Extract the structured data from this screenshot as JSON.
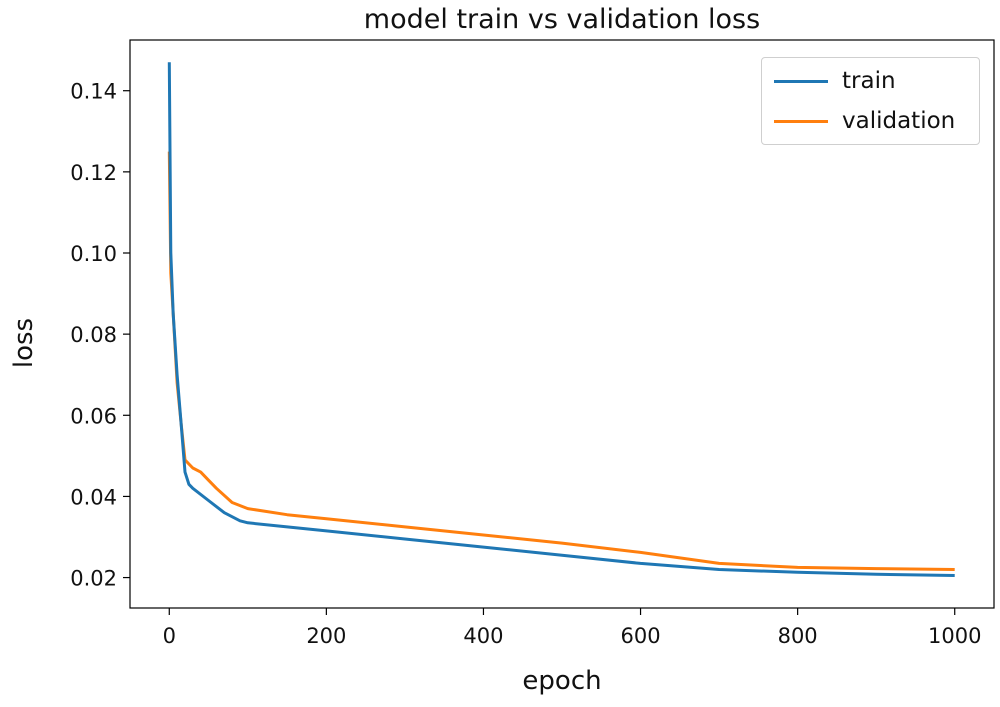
{
  "chart_data": {
    "type": "line",
    "title": "model train vs validation loss",
    "xlabel": "epoch",
    "ylabel": "loss",
    "xlim": [
      -50,
      1050
    ],
    "ylim": [
      0.0125,
      0.1525
    ],
    "xticks": [
      0,
      200,
      400,
      600,
      800,
      1000
    ],
    "xtick_labels": [
      "0",
      "200",
      "400",
      "600",
      "800",
      "1000"
    ],
    "yticks": [
      0.02,
      0.04,
      0.06,
      0.08,
      0.1,
      0.12,
      0.14
    ],
    "ytick_labels": [
      "0.02",
      "0.04",
      "0.06",
      "0.08",
      "0.10",
      "0.12",
      "0.14"
    ],
    "grid": false,
    "legend_position": "top-right",
    "series": [
      {
        "name": "train",
        "color": "#1f77b4",
        "x": [
          0,
          2,
          5,
          10,
          15,
          20,
          25,
          30,
          50,
          70,
          90,
          100,
          150,
          200,
          300,
          400,
          500,
          600,
          700,
          800,
          900,
          1000
        ],
        "y": [
          0.147,
          0.1,
          0.085,
          0.07,
          0.058,
          0.046,
          0.043,
          0.042,
          0.039,
          0.036,
          0.034,
          0.0335,
          0.0325,
          0.0315,
          0.0295,
          0.0275,
          0.0255,
          0.0235,
          0.022,
          0.0213,
          0.0208,
          0.0205
        ]
      },
      {
        "name": "validation",
        "color": "#ff7f0e",
        "x": [
          0,
          2,
          5,
          10,
          15,
          20,
          25,
          30,
          40,
          50,
          60,
          80,
          100,
          150,
          200,
          300,
          400,
          500,
          600,
          700,
          800,
          900,
          1000
        ],
        "y": [
          0.125,
          0.095,
          0.085,
          0.068,
          0.058,
          0.049,
          0.048,
          0.047,
          0.046,
          0.044,
          0.042,
          0.0385,
          0.037,
          0.0355,
          0.0345,
          0.0325,
          0.0305,
          0.0285,
          0.0262,
          0.0235,
          0.0225,
          0.0222,
          0.022
        ]
      }
    ]
  }
}
